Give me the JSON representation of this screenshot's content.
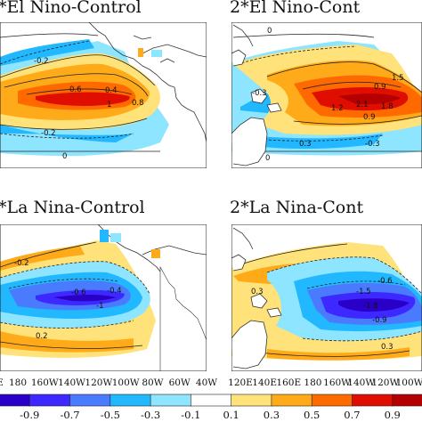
{
  "panels": [
    {
      "title": "*El Nino-Control",
      "labels": [
        "-0.2",
        "0.6",
        "0.4",
        "1",
        "0.8",
        "-0.2",
        "0"
      ]
    },
    {
      "title": "2*El Nino-Cont",
      "labels": [
        "0",
        "-0.3",
        "1.5",
        "0.9",
        "2.1",
        "1.8",
        "1.2",
        "0.9",
        "0.3",
        "-0.3",
        "0"
      ]
    },
    {
      "title": "*La Nina-Control",
      "labels": [
        "-0.2",
        "-0.6",
        "-0.4",
        "-1",
        "0.2"
      ]
    },
    {
      "title": "2*La Nina-Cont",
      "labels": [
        "-0.6",
        "0.3",
        "-1.5",
        "-1.8",
        "-0.9",
        "0.3"
      ]
    }
  ],
  "lon_ticks_left": [
    "180",
    "160W",
    "140W",
    "120W",
    "100W",
    "80W",
    "60W",
    "40W"
  ],
  "lon_ticks_right": [
    "120E",
    "140E",
    "160E",
    "180",
    "160W",
    "140W",
    "120W",
    "100W"
  ],
  "lon_tick_partial_left": "E",
  "colorbar": {
    "labels": [
      "-0.9",
      "-0.7",
      "-0.5",
      "-0.3",
      "-0.1",
      "0.1",
      "0.3",
      "0.5",
      "0.7",
      "0.9"
    ],
    "colors": [
      "#2a00c8",
      "#3d28ff",
      "#4a7bff",
      "#22b8ff",
      "#8ee5ff",
      "#ffffff",
      "#ffe27a",
      "#ffaa18",
      "#ff6a00",
      "#e00e00",
      "#b40000"
    ]
  }
}
